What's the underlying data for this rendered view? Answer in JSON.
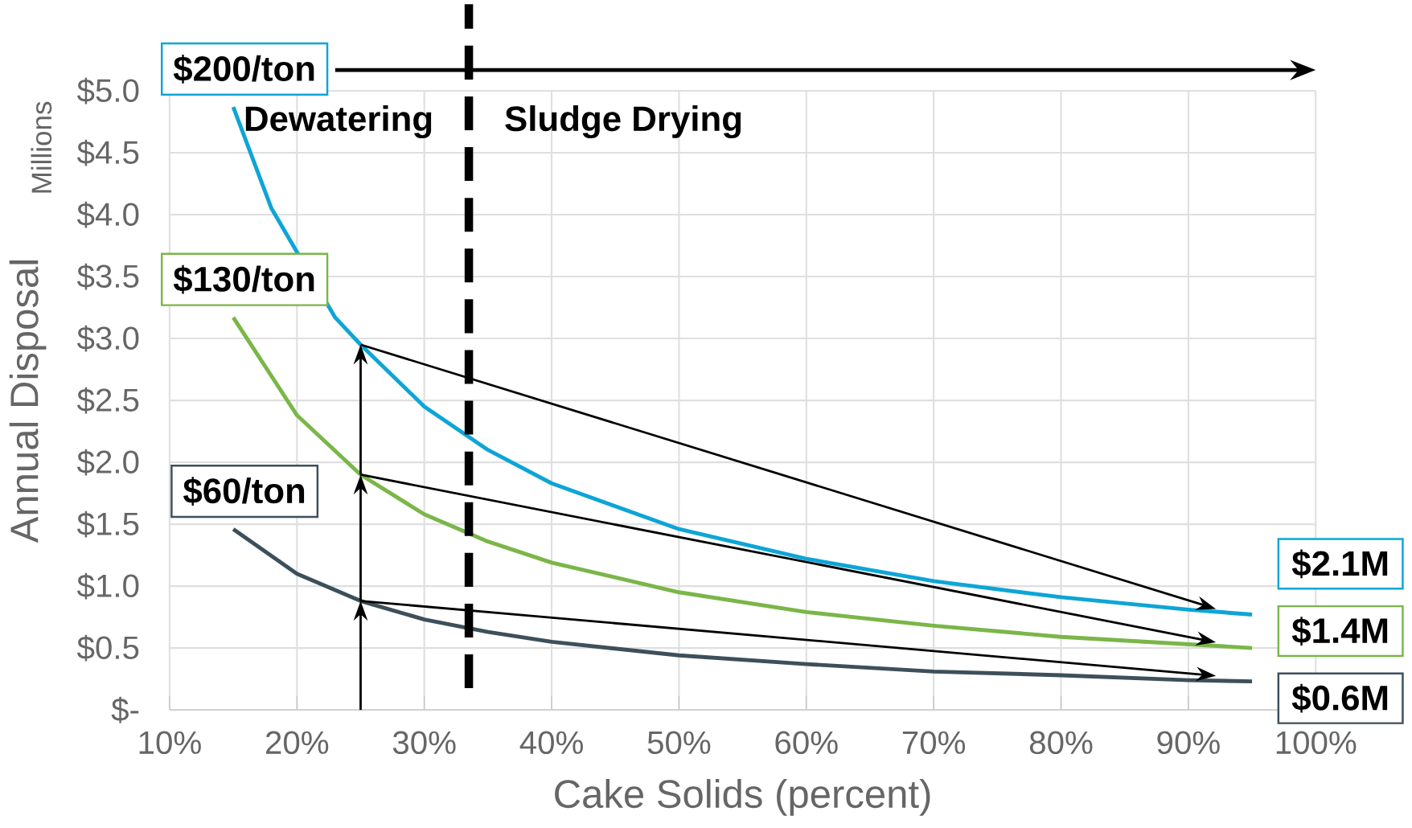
{
  "chart_data": {
    "type": "line",
    "xlabel": "Cake Solids (percent)",
    "ylabel": "Annual Disposal",
    "annotations": [
      "Millions",
      "Dewatering",
      "Sludge Drying",
      "$2.1M",
      "$1.4M",
      "$0.6M"
    ],
    "xlim": [
      10,
      100
    ],
    "ylim": [
      0,
      5
    ],
    "xticks": [
      {
        "value": 10,
        "label": "10%"
      },
      {
        "value": 20,
        "label": "20%"
      },
      {
        "value": 30,
        "label": "30%"
      },
      {
        "value": 40,
        "label": "40%"
      },
      {
        "value": 50,
        "label": "50%"
      },
      {
        "value": 60,
        "label": "60%"
      },
      {
        "value": 70,
        "label": "70%"
      },
      {
        "value": 80,
        "label": "80%"
      },
      {
        "value": 90,
        "label": "90%"
      },
      {
        "value": 100,
        "label": "100%"
      }
    ],
    "yticks": [
      {
        "value": 0,
        "label": "$-"
      },
      {
        "value": 0.5,
        "label": "$0.5"
      },
      {
        "value": 1,
        "label": "$1.0"
      },
      {
        "value": 1.5,
        "label": "$1.5"
      },
      {
        "value": 2,
        "label": "$2.0"
      },
      {
        "value": 2.5,
        "label": "$2.5"
      },
      {
        "value": 3,
        "label": "$3.0"
      },
      {
        "value": 3.5,
        "label": "$3.5"
      },
      {
        "value": 4,
        "label": "$4.0"
      },
      {
        "value": 4.5,
        "label": "$4.5"
      },
      {
        "value": 5,
        "label": "$5.0"
      }
    ],
    "grid": true,
    "marker": "none",
    "line_style": "solid",
    "ref_lines": [
      {
        "axis": "x",
        "value": 33.5,
        "color": "#000000",
        "line_style": "dashed"
      }
    ],
    "series": [
      {
        "name": "$200/ton",
        "color": "#0ea5d6",
        "x": [
          15,
          18,
          23,
          25,
          30,
          35,
          40,
          50,
          60,
          70,
          80,
          90,
          95
        ],
        "values": [
          4.87,
          4.05,
          3.17,
          2.95,
          2.45,
          2.1,
          1.83,
          1.46,
          1.22,
          1.04,
          0.91,
          0.81,
          0.77
        ]
      },
      {
        "name": "$130/ton",
        "color": "#7ab648",
        "x": [
          15,
          20,
          25,
          30,
          35,
          40,
          50,
          60,
          70,
          80,
          90,
          95
        ],
        "values": [
          3.17,
          2.38,
          1.9,
          1.58,
          1.36,
          1.19,
          0.95,
          0.79,
          0.68,
          0.59,
          0.53,
          0.5
        ]
      },
      {
        "name": "$60/ton",
        "color": "#3d4f5a",
        "x": [
          15,
          20,
          25,
          30,
          35,
          40,
          50,
          60,
          70,
          80,
          90,
          95
        ],
        "values": [
          1.46,
          1.1,
          0.88,
          0.73,
          0.63,
          0.55,
          0.44,
          0.37,
          0.31,
          0.28,
          0.24,
          0.23
        ]
      }
    ]
  }
}
